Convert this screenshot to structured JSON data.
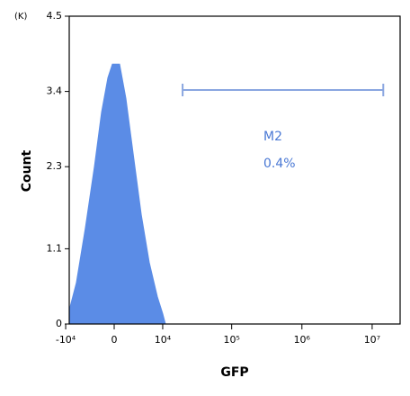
{
  "chart_data": {
    "type": "area",
    "xlabel": "GFP",
    "ylabel": "Count",
    "yunit": "(K)",
    "x": [
      -8800,
      -6750,
      -4650,
      -2960,
      -1810,
      -880,
      -250,
      760,
      1670,
      2810,
      4280,
      6050,
      8240,
      10000,
      11000
    ],
    "values": [
      0.2,
      0.6,
      1.4,
      2.3,
      3.1,
      3.6,
      3.8,
      3.8,
      3.3,
      2.5,
      1.6,
      0.9,
      0.4,
      0.15,
      0
    ],
    "color": "#5b8ce6",
    "xscale": "asinh",
    "xscale_width": 4255,
    "xlim": [
      -8800,
      25000000
    ],
    "xticks": [
      {
        "value": -10000,
        "label": "-10⁴"
      },
      0,
      {
        "value": 10000,
        "label": "10⁴"
      },
      {
        "value": 100000,
        "label": "10⁵"
      },
      {
        "value": 1000000,
        "label": "10⁶"
      },
      {
        "value": 10000000,
        "label": "10⁷"
      }
    ],
    "ylim": [
      0,
      4.5
    ],
    "yticks": [
      0,
      1.1,
      2.3,
      3.4,
      4.5
    ],
    "gate": {
      "name": "M2",
      "range": [
        19800,
        14400000
      ],
      "label": "0.4%",
      "color": "#8aa6e0",
      "text_color": "#4a78d4"
    }
  }
}
